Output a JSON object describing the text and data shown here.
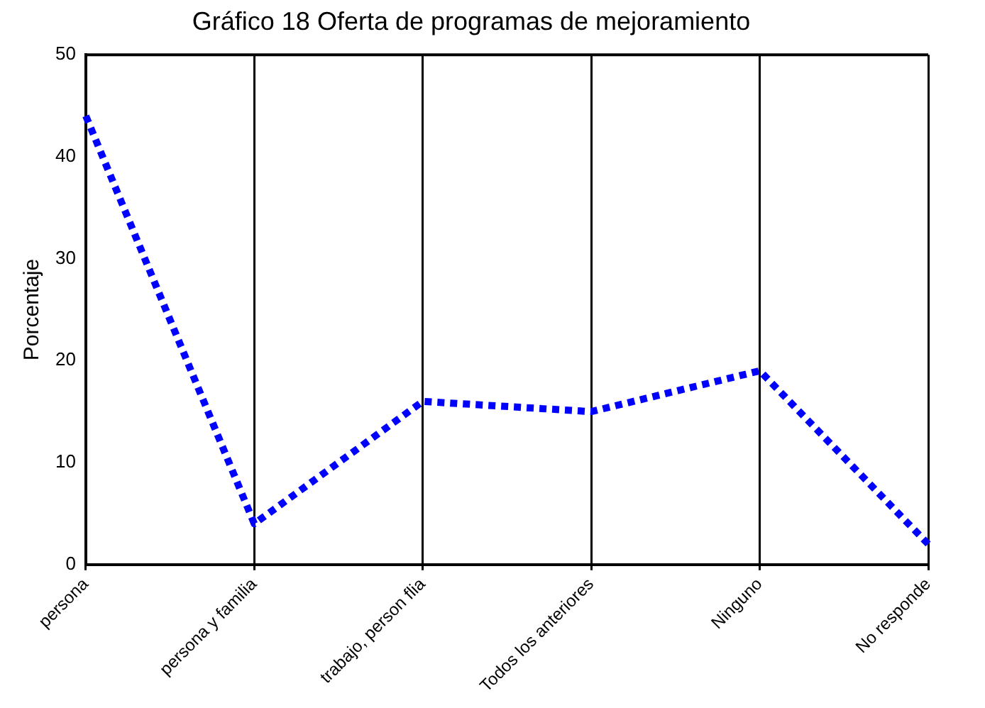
{
  "chart_data": {
    "type": "line",
    "title": "Gráfico 18 Oferta de programas de mejoramiento",
    "ylabel": "Porcentaje",
    "categories": [
      "persona",
      "persona y familia",
      "trabajo, person flia",
      "Todos los anteriores",
      "Ninguno",
      "No responde"
    ],
    "series": [
      {
        "color": "#0000ff",
        "values": [
          44,
          4,
          16,
          15,
          19,
          2
        ]
      }
    ],
    "ylim": [
      0,
      50
    ],
    "yticks": [
      0,
      10,
      20,
      30,
      40,
      50
    ],
    "grid": "x",
    "legend": false,
    "marker": "none",
    "line_style": "dotted"
  }
}
